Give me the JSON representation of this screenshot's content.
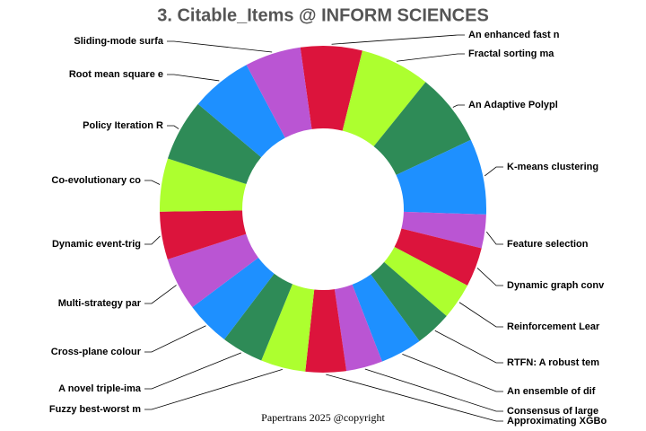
{
  "chart_data": {
    "type": "donut",
    "title": "3. Citable_Items @ INFORM SCIENCES",
    "footer": "Papertrans 2025 @copyright",
    "categories": [
      "An enhanced fast n",
      "Fractal sorting ma",
      "An Adaptive Polypl",
      "K-means clustering",
      "Feature selection",
      "Dynamic graph conv",
      "Reinforcement Lear",
      "RTFN: A robust tem",
      "An ensemble of dif",
      "Consensus of large",
      "Approximating XGBo",
      "Fuzzy best-worst m",
      "A novel triple-ima",
      "Cross-plane colour",
      "Multi-strategy par",
      "Dynamic event-trig",
      "Co-evolutionary co",
      "Policy Iteration R",
      "Root mean square e",
      "Sliding-mode surfa"
    ],
    "values": [
      22,
      25,
      26,
      27,
      12,
      14,
      13,
      13,
      15,
      13,
      14.5,
      16,
      15,
      16,
      19,
      17,
      19,
      22,
      22,
      20
    ],
    "colors": [
      "#dc143c",
      "#adff2f",
      "#2e8b57",
      "#1e90ff",
      "#ba55d3"
    ]
  }
}
